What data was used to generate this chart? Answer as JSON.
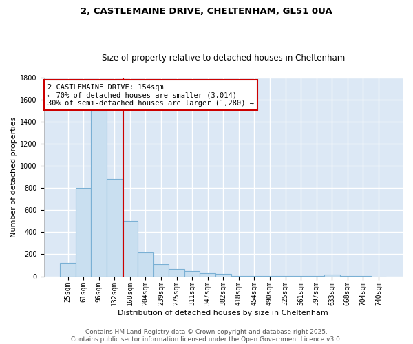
{
  "title1": "2, CASTLEMAINE DRIVE, CHELTENHAM, GL51 0UA",
  "title2": "Size of property relative to detached houses in Cheltenham",
  "xlabel": "Distribution of detached houses by size in Cheltenham",
  "ylabel": "Number of detached properties",
  "categories": [
    "25sqm",
    "61sqm",
    "96sqm",
    "132sqm",
    "168sqm",
    "204sqm",
    "239sqm",
    "275sqm",
    "311sqm",
    "347sqm",
    "382sqm",
    "418sqm",
    "454sqm",
    "490sqm",
    "525sqm",
    "561sqm",
    "597sqm",
    "633sqm",
    "668sqm",
    "704sqm",
    "740sqm"
  ],
  "bar_heights": [
    120,
    800,
    1500,
    880,
    500,
    215,
    110,
    65,
    45,
    30,
    25,
    5,
    5,
    5,
    5,
    5,
    5,
    15,
    5,
    5,
    0
  ],
  "bar_color": "#c9dff0",
  "bar_edge_color": "#7ab0d4",
  "bar_edge_width": 0.8,
  "vline_color": "#cc0000",
  "vline_x": 3.57,
  "annotation_text": "2 CASTLEMAINE DRIVE: 154sqm\n← 70% of detached houses are smaller (3,014)\n30% of semi-detached houses are larger (1,280) →",
  "annotation_box_color": "#ffffff",
  "annotation_box_edge_color": "#cc0000",
  "ylim": [
    0,
    1800
  ],
  "yticks": [
    0,
    200,
    400,
    600,
    800,
    1000,
    1200,
    1400,
    1600,
    1800
  ],
  "bg_color": "#dce8f5",
  "grid_color": "#ffffff",
  "footer_line1": "Contains HM Land Registry data © Crown copyright and database right 2025.",
  "footer_line2": "Contains public sector information licensed under the Open Government Licence v3.0.",
  "title1_fontsize": 9.5,
  "title2_fontsize": 8.5,
  "xlabel_fontsize": 8,
  "ylabel_fontsize": 8,
  "tick_fontsize": 7,
  "footer_fontsize": 6.5,
  "annotation_fontsize": 7.5
}
